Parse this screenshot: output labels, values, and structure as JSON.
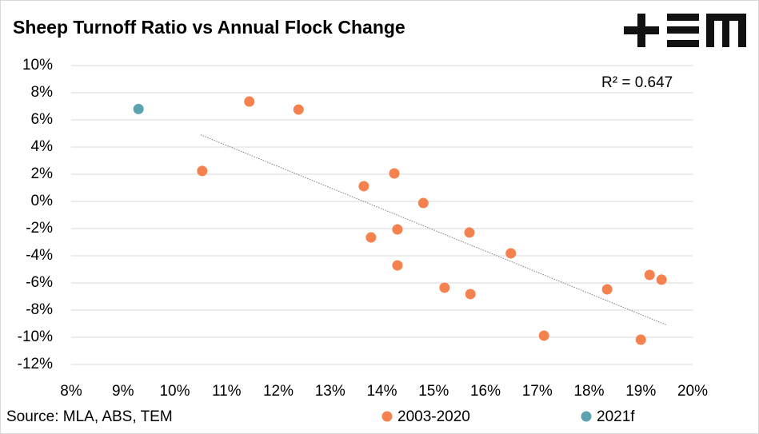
{
  "chart_data": {
    "type": "scatter",
    "title": "Sheep Turnoff Ratio vs Annual Flock Change",
    "source": "Source: MLA, ABS, TEM",
    "annotation": "R² = 0.647",
    "xlim": [
      8,
      20
    ],
    "xticks": [
      {
        "value": 8,
        "label": "8%"
      },
      {
        "value": 9,
        "label": "9%"
      },
      {
        "value": 10,
        "label": "10%"
      },
      {
        "value": 11,
        "label": "11%"
      },
      {
        "value": 12,
        "label": "12%"
      },
      {
        "value": 13,
        "label": "13%"
      },
      {
        "value": 14,
        "label": "14%"
      },
      {
        "value": 15,
        "label": "15%"
      },
      {
        "value": 16,
        "label": "16%"
      },
      {
        "value": 17,
        "label": "17%"
      },
      {
        "value": 18,
        "label": "18%"
      },
      {
        "value": 19,
        "label": "19%"
      },
      {
        "value": 20,
        "label": "20%"
      }
    ],
    "ylim": [
      -12,
      10
    ],
    "yticks": [
      {
        "value": 10,
        "label": "10%"
      },
      {
        "value": 8,
        "label": "8%"
      },
      {
        "value": 6,
        "label": "6%"
      },
      {
        "value": 4,
        "label": "4%"
      },
      {
        "value": 2,
        "label": "2%"
      },
      {
        "value": 0,
        "label": "0%"
      },
      {
        "value": -2,
        "label": "-2%"
      },
      {
        "value": -4,
        "label": "-4%"
      },
      {
        "value": -6,
        "label": "-6%"
      },
      {
        "value": -8,
        "label": "-8%"
      },
      {
        "value": -10,
        "label": "-10%"
      },
      {
        "value": -12,
        "label": "-12%"
      }
    ],
    "grid": true,
    "series": [
      {
        "name": "2003-2020",
        "color": "#f5814e",
        "x": [
          10.53,
          11.44,
          12.39,
          13.65,
          14.24,
          14.8,
          13.79,
          14.3,
          14.3,
          15.21,
          15.69,
          15.71,
          16.49,
          17.13,
          18.35,
          19.0,
          19.17,
          19.4
        ],
        "values": [
          2.24,
          7.35,
          6.76,
          1.12,
          2.06,
          -0.12,
          -2.65,
          -2.06,
          -4.71,
          -6.35,
          -2.29,
          -6.82,
          -3.82,
          -9.88,
          -6.47,
          -10.18,
          -5.41,
          -5.76
        ]
      },
      {
        "name": "2021f",
        "color": "#5ba3b0",
        "x": [
          9.3
        ],
        "values": [
          6.8
        ]
      }
    ],
    "trendline": {
      "x": [
        10.5,
        19.5
      ],
      "values": [
        4.9,
        -9.1
      ],
      "color": "#7f7f7f"
    }
  }
}
